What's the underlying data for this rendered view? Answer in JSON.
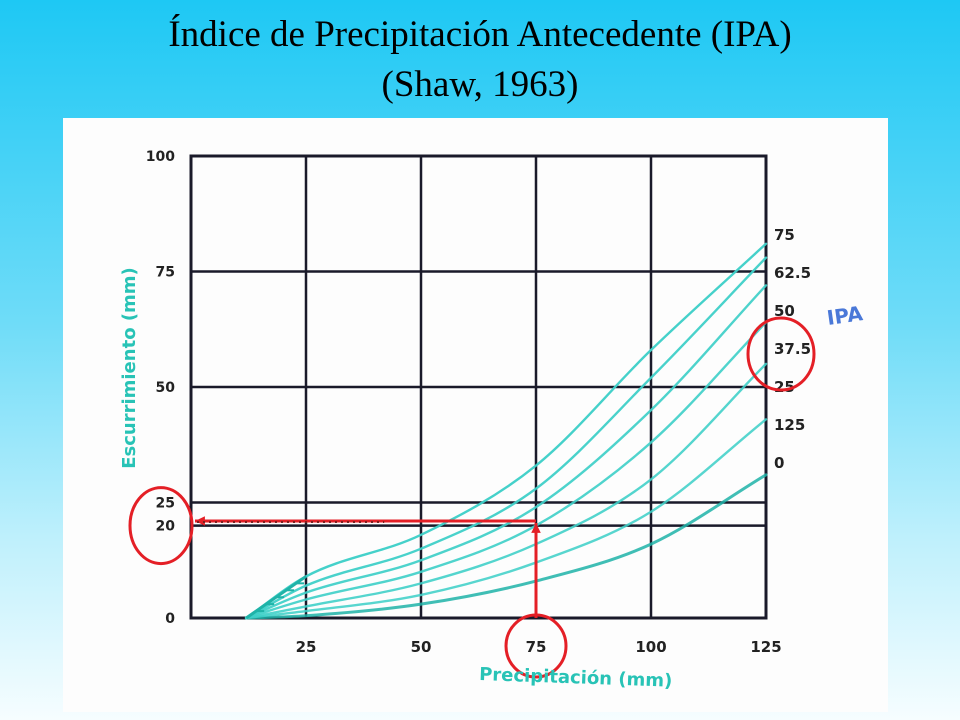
{
  "slide": {
    "title_line1": "Índice de Precipitación Antecedente (IPA)",
    "title_line2": "(Shaw, 1963)"
  },
  "colors": {
    "curve": "#3fd0c8",
    "curve_dark": "#1fb3a8",
    "axis_label": "#28c3b6",
    "ipa_label": "#4a78d8",
    "grid": "#1a1a2a",
    "annotation": "#e41f26"
  },
  "chart_data": {
    "type": "line",
    "xlabel": "Precipitación (mm)",
    "ylabel": "Escurrimiento (mm)",
    "xlim": [
      0,
      125
    ],
    "ylim": [
      0,
      100
    ],
    "x_ticks": [
      "25",
      "50",
      "75",
      "100",
      "125"
    ],
    "y_ticks": [
      "0",
      "20",
      "25",
      "50",
      "75",
      "100"
    ],
    "legend_title": "IPA",
    "grid": true,
    "series": [
      {
        "name": "0",
        "x": [
          12,
          25,
          50,
          75,
          100,
          125
        ],
        "y": [
          0,
          0.5,
          3,
          8,
          16,
          31
        ]
      },
      {
        "name": "125",
        "x": [
          12,
          25,
          50,
          75,
          100,
          125
        ],
        "y": [
          0,
          1.5,
          5,
          12,
          23,
          43
        ]
      },
      {
        "name": "25",
        "x": [
          12,
          25,
          50,
          75,
          100,
          125
        ],
        "y": [
          0,
          2.5,
          7.5,
          16,
          30,
          55
        ]
      },
      {
        "name": "37.5",
        "x": [
          12,
          25,
          50,
          75,
          100,
          125
        ],
        "y": [
          0,
          4,
          10,
          20,
          38,
          64
        ]
      },
      {
        "name": "50",
        "x": [
          12,
          25,
          50,
          75,
          100,
          125
        ],
        "y": [
          0,
          5.5,
          12.5,
          24,
          45,
          72
        ]
      },
      {
        "name": "62.5",
        "x": [
          12,
          25,
          50,
          75,
          100,
          125
        ],
        "y": [
          0,
          7,
          15,
          28,
          52,
          78
        ]
      },
      {
        "name": "75",
        "x": [
          12,
          25,
          50,
          75,
          100,
          125
        ],
        "y": [
          0,
          9,
          18,
          33,
          58,
          81
        ]
      }
    ],
    "annotations": [
      {
        "type": "arrow",
        "from": [
          75,
          0
        ],
        "to": [
          75,
          21
        ]
      },
      {
        "type": "arrow",
        "from": [
          75,
          21
        ],
        "to": [
          0,
          21
        ]
      },
      {
        "type": "circle",
        "target": "x-tick 75"
      },
      {
        "type": "circle",
        "target": "y-tick 20"
      },
      {
        "type": "circle",
        "target": "IPA 25"
      }
    ]
  }
}
